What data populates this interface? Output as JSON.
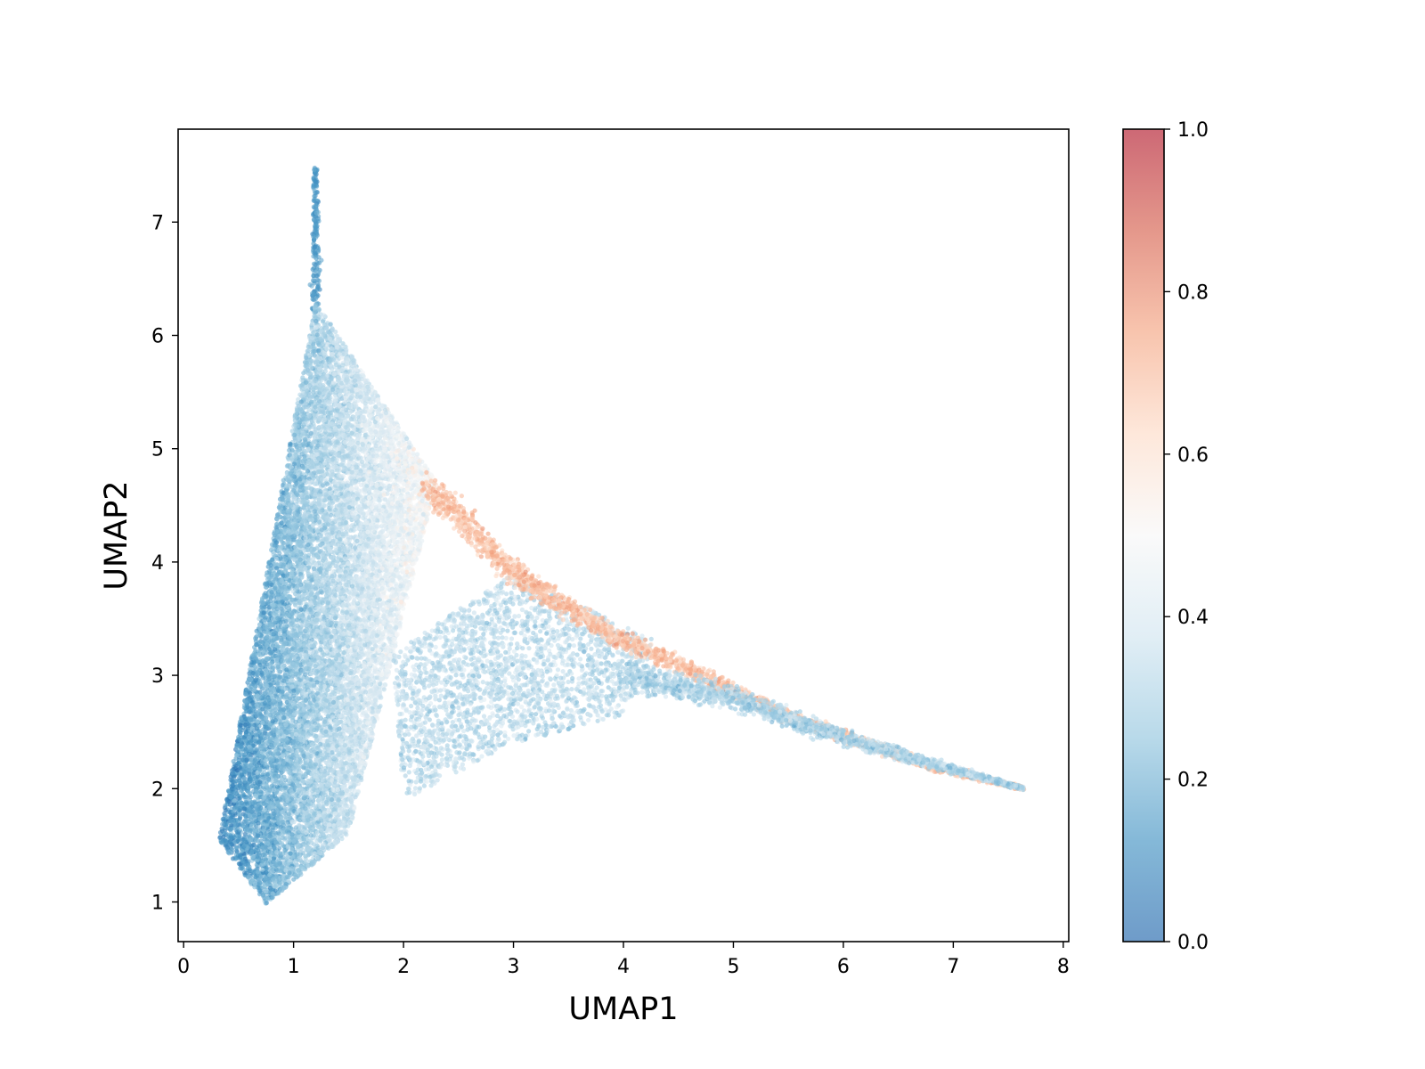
{
  "chart_data": {
    "type": "scatter",
    "title": "",
    "xlabel": "UMAP1",
    "ylabel": "UMAP2",
    "xlim": [
      -0.05,
      8.05
    ],
    "ylim": [
      0.65,
      7.82
    ],
    "x_ticks": [
      0,
      1,
      2,
      3,
      4,
      5,
      6,
      7,
      8
    ],
    "y_ticks": [
      1,
      2,
      3,
      4,
      5,
      6,
      7
    ],
    "grid": false,
    "colormap": "RdBu_r",
    "colormap_stops": [
      "#2166ac",
      "#4393c3",
      "#92c5de",
      "#d1e5f0",
      "#f7f7f7",
      "#fddbc7",
      "#f4a582",
      "#d6604d",
      "#b2182b"
    ],
    "point_alpha": 0.6,
    "colorbar": {
      "range": [
        0.0,
        1.0
      ],
      "ticks": [
        "0.0",
        "0.2",
        "0.4",
        "0.6",
        "0.8",
        "1.0"
      ]
    },
    "regions": [
      {
        "shape": "stem",
        "x_range": [
          1.16,
          1.24
        ],
        "y_range": [
          6.2,
          7.48
        ],
        "value": 0.15,
        "points": 200
      },
      {
        "shape": "main-triangle",
        "vertices": [
          [
            1.2,
            6.3
          ],
          [
            0.32,
            1.55
          ],
          [
            0.75,
            0.98
          ],
          [
            1.5,
            1.6
          ],
          [
            2.3,
            4.7
          ]
        ],
        "value_low": 0.12,
        "value_high": 0.5,
        "points": 14000
      },
      {
        "shape": "lower-wing",
        "vertices": [
          [
            1.9,
            3.2
          ],
          [
            2.0,
            1.9
          ],
          [
            3.0,
            2.4
          ],
          [
            4.0,
            2.65
          ],
          [
            4.3,
            3.3
          ],
          [
            3.0,
            3.9
          ]
        ],
        "value": 0.33,
        "points": 2500
      },
      {
        "shape": "red-ridge",
        "path": [
          [
            2.2,
            4.7
          ],
          [
            2.6,
            4.3
          ],
          [
            3.0,
            3.9
          ],
          [
            3.5,
            3.6
          ],
          [
            4.0,
            3.3
          ],
          [
            4.5,
            3.1
          ],
          [
            5.0,
            2.85
          ],
          [
            5.6,
            2.6
          ],
          [
            6.2,
            2.4
          ],
          [
            6.8,
            2.2
          ],
          [
            7.3,
            2.08
          ],
          [
            7.65,
            2.0
          ]
        ],
        "value": 0.68,
        "points": 2600
      },
      {
        "shape": "tail",
        "path": [
          [
            4.0,
            3.0
          ],
          [
            5.0,
            2.8
          ],
          [
            6.0,
            2.45
          ],
          [
            6.8,
            2.22
          ],
          [
            7.65,
            2.0
          ]
        ],
        "value": 0.3,
        "points": 1800
      }
    ]
  }
}
